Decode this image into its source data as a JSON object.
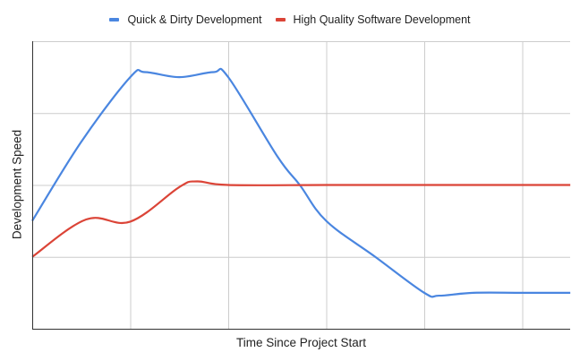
{
  "chart_data": {
    "type": "line",
    "title": "",
    "xlabel": "Time Since Project Start",
    "ylabel": "Development Speed",
    "x_tick_labels": [],
    "y_tick_labels": [],
    "xlim": [
      0,
      5.49
    ],
    "ylim": [
      0,
      4
    ],
    "grid": true,
    "legend_position": "top",
    "smooth": true,
    "series": [
      {
        "name": "Quick & Dirty Development",
        "color": "#4a86e0",
        "points": [
          [
            0,
            1.5
          ],
          [
            0.5,
            2.6
          ],
          [
            1,
            3.5
          ],
          [
            1.15,
            3.57
          ],
          [
            1.5,
            3.5
          ],
          [
            1.85,
            3.57
          ],
          [
            2,
            3.5
          ],
          [
            2.5,
            2.4
          ],
          [
            2.73,
            2.0
          ],
          [
            3,
            1.5
          ],
          [
            3.5,
            1.0
          ],
          [
            4,
            0.5
          ],
          [
            4.15,
            0.46
          ],
          [
            4.5,
            0.5
          ],
          [
            5,
            0.5
          ],
          [
            5.49,
            0.5
          ]
        ]
      },
      {
        "name": "High Quality Software Development",
        "color": "#db4437",
        "points": [
          [
            0,
            1.0
          ],
          [
            0.55,
            1.52
          ],
          [
            1,
            1.49
          ],
          [
            1.5,
            1.97
          ],
          [
            1.68,
            2.05
          ],
          [
            2,
            2.0
          ],
          [
            3,
            2.0
          ],
          [
            4,
            2.0
          ],
          [
            5,
            2.0
          ],
          [
            5.49,
            2.0
          ]
        ]
      }
    ]
  },
  "legend": {
    "items": [
      {
        "label": "Quick & Dirty Development",
        "color": "#4a86e0"
      },
      {
        "label": "High Quality Software Development",
        "color": "#db4437"
      }
    ]
  },
  "axes": {
    "x_title": "Time Since Project Start",
    "y_title": "Development Speed"
  },
  "style": {
    "grid_color": "#cccccc",
    "axis_color": "#333333"
  }
}
